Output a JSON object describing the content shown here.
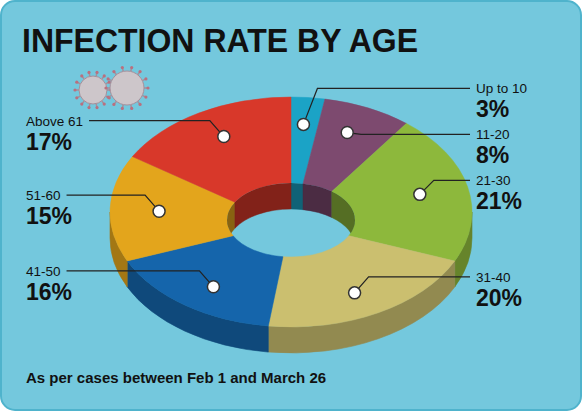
{
  "chart_data": {
    "type": "donut",
    "title": "INFECTION RATE BY AGE",
    "annotations": [
      "As per cases between Feb 1 and March 26"
    ],
    "categories": [
      "Up to 10",
      "11-20",
      "21-30",
      "31-40",
      "41-50",
      "51-60",
      "Above 61"
    ],
    "values": [
      3,
      8,
      21,
      20,
      16,
      15,
      17
    ],
    "value_labels": [
      "3%",
      "8%",
      "21%",
      "20%",
      "16%",
      "15%",
      "17%"
    ],
    "colors": [
      "#1ba3c6",
      "#7d4a6f",
      "#8db83c",
      "#cbbf6f",
      "#1565ab",
      "#e3a51c",
      "#d8382a"
    ],
    "data_labels": true
  }
}
